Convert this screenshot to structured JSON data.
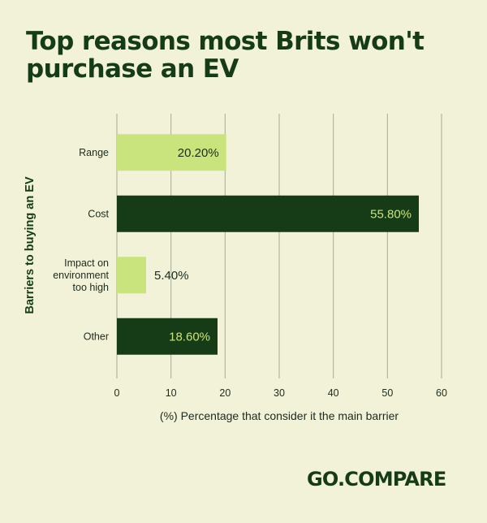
{
  "title": "Top reasons most Brits won't purchase an EV",
  "logo": "GO.COMPARE",
  "colors": {
    "background": "#f1f2d8",
    "light_bar": "#c9e47c",
    "dark_bar": "#163c17",
    "light_text": "#c9e47c",
    "dark_text": "#1d2a1d"
  },
  "chart_data": {
    "type": "bar",
    "orientation": "horizontal",
    "ylabel": "Barriers to buying an EV",
    "xlabel": "(%) Percentage that consider it the main barrier",
    "categories": [
      [
        "Range"
      ],
      [
        "Cost"
      ],
      [
        "Impact on",
        "environment",
        "too high"
      ],
      [
        "Other"
      ]
    ],
    "values": [
      20.2,
      55.8,
      5.4,
      18.6
    ],
    "value_labels": [
      "20.20%",
      "55.80%",
      "5.40%",
      "18.60%"
    ],
    "bar_colors": [
      "#c9e47c",
      "#163c17",
      "#c9e47c",
      "#163c17"
    ],
    "xlim": [
      0,
      60
    ],
    "xticks": [
      0,
      10,
      20,
      30,
      40,
      50,
      60
    ],
    "grid": "vertical"
  }
}
